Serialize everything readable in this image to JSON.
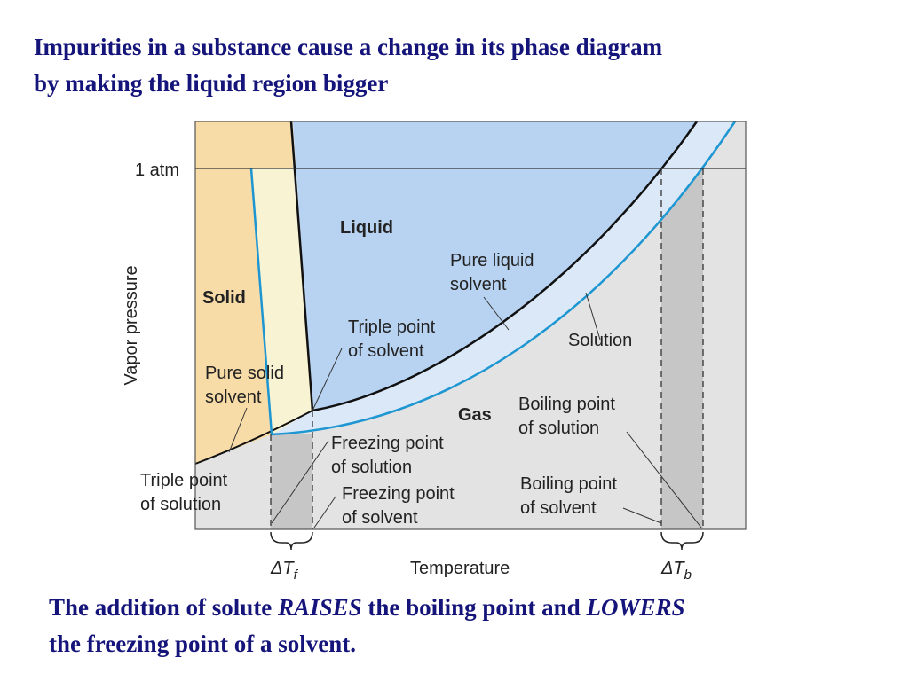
{
  "header": {
    "title": [
      "Impurities in a substance cause a change in its phase diagram",
      "by making the liquid region bigger"
    ]
  },
  "diagram": {
    "pressure_mark": "1 atm",
    "y_axis_label": "Vapor pressure",
    "x_axis_label": "Temperature",
    "regions": {
      "solid": "Solid",
      "liquid": "Liquid",
      "gas": "Gas"
    },
    "labels": {
      "pure_liquid_solvent": [
        "Pure liquid",
        "solvent"
      ],
      "triple_point_solvent": [
        "Triple point",
        "of solvent"
      ],
      "solution": [
        "Solution"
      ],
      "pure_solid_solvent": [
        "Pure solid",
        "solvent"
      ],
      "boiling_point_solution": [
        "Boiling point",
        "of solution"
      ],
      "freezing_point_solution": [
        "Freezing point",
        "of solution"
      ],
      "freezing_point_solvent": [
        "Freezing point",
        "of solvent"
      ],
      "boiling_point_solvent": [
        "Boiling point",
        "of solvent"
      ],
      "triple_point_solution": [
        "Triple point",
        "of solution"
      ]
    },
    "delta_tf": {
      "main": "ΔT",
      "sub": "f"
    },
    "delta_tb": {
      "main": "ΔT",
      "sub": "b"
    }
  },
  "footer": {
    "line1": [
      "The addition of solute ",
      "RAISES",
      " the boiling point and ",
      "LOWERS"
    ],
    "line2": "the freezing point of a solvent."
  }
}
